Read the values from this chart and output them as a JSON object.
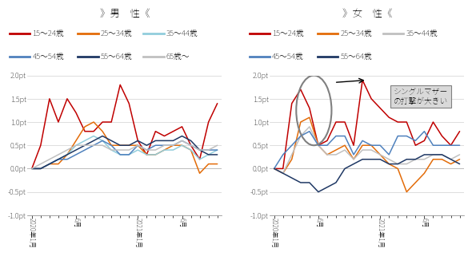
{
  "title_male": "》男　性《",
  "title_female": "》女　性《",
  "annotation_text": "シングルマザー\nの打撃が大きい",
  "ylim": [
    -1.0,
    2.0
  ],
  "yticks": [
    -1.0,
    -0.5,
    0.0,
    0.5,
    1.0,
    1.5,
    2.0
  ],
  "ytick_labels": [
    "-1.0pt",
    "-0.5pt",
    "0.0pt",
    "0.5pt",
    "1.0pt",
    "1.5pt",
    "2.0pt"
  ],
  "n_points": 22,
  "legend_male": [
    {
      "label": "15～24歳",
      "color": "#c00000"
    },
    {
      "label": "25～34歳",
      "color": "#e36c09"
    },
    {
      "label": "35～44歳",
      "color": "#92cddc"
    },
    {
      "label": "45～54歳",
      "color": "#4f81bd"
    },
    {
      "label": "55～64歳",
      "color": "#1f3864"
    },
    {
      "label": "65歳～",
      "color": "#c0c0c0"
    }
  ],
  "legend_female": [
    {
      "label": "15～24歳",
      "color": "#c00000"
    },
    {
      "label": "25～34歳",
      "color": "#e36c09"
    },
    {
      "label": "35～44歳",
      "color": "#c0c0c0"
    },
    {
      "label": "45～54歳",
      "color": "#4f81bd"
    },
    {
      "label": "55～64歳",
      "color": "#1f3864"
    }
  ],
  "male_data": {
    "age15_24": [
      0.0,
      0.5,
      1.5,
      1.0,
      1.5,
      1.2,
      0.8,
      0.8,
      1.0,
      1.0,
      1.8,
      1.4,
      0.6,
      0.3,
      0.8,
      0.7,
      0.8,
      0.9,
      0.5,
      0.2,
      1.0,
      1.4
    ],
    "age25_34": [
      0.0,
      0.0,
      0.1,
      0.1,
      0.3,
      0.6,
      0.9,
      1.0,
      0.8,
      0.5,
      0.5,
      0.5,
      0.5,
      0.3,
      0.3,
      0.4,
      0.5,
      0.5,
      0.4,
      -0.1,
      0.1,
      0.1
    ],
    "age35_44": [
      0.0,
      0.0,
      0.1,
      0.2,
      0.3,
      0.5,
      0.6,
      0.7,
      0.6,
      0.4,
      0.3,
      0.3,
      0.4,
      0.3,
      0.3,
      0.4,
      0.4,
      0.5,
      0.4,
      0.2,
      0.3,
      0.4
    ],
    "age45_54": [
      0.0,
      0.0,
      0.1,
      0.2,
      0.2,
      0.3,
      0.4,
      0.5,
      0.6,
      0.5,
      0.3,
      0.3,
      0.5,
      0.4,
      0.5,
      0.5,
      0.5,
      0.6,
      0.5,
      0.4,
      0.4,
      0.4
    ],
    "age55_64": [
      0.0,
      0.0,
      0.1,
      0.2,
      0.3,
      0.4,
      0.5,
      0.6,
      0.7,
      0.6,
      0.5,
      0.5,
      0.6,
      0.5,
      0.6,
      0.6,
      0.6,
      0.7,
      0.6,
      0.4,
      0.3,
      0.3
    ],
    "age65p": [
      0.0,
      0.1,
      0.2,
      0.3,
      0.4,
      0.5,
      0.5,
      0.5,
      0.5,
      0.4,
      0.4,
      0.4,
      0.5,
      0.4,
      0.4,
      0.5,
      0.5,
      0.6,
      0.5,
      0.4,
      0.4,
      0.5
    ]
  },
  "female_data": {
    "age15_24": [
      0.0,
      0.0,
      1.4,
      1.7,
      1.3,
      0.5,
      0.6,
      1.0,
      1.0,
      0.5,
      1.9,
      1.5,
      1.3,
      1.1,
      1.0,
      1.0,
      0.5,
      0.6,
      1.0,
      0.7,
      0.5,
      0.8
    ],
    "age25_34": [
      0.0,
      -0.1,
      0.2,
      1.0,
      1.1,
      0.5,
      0.3,
      0.4,
      0.5,
      0.2,
      0.5,
      0.5,
      0.3,
      0.1,
      0.0,
      -0.5,
      -0.3,
      -0.1,
      0.2,
      0.2,
      0.1,
      0.2
    ],
    "age35_44": [
      0.0,
      -0.1,
      0.3,
      0.7,
      0.9,
      0.5,
      0.3,
      0.3,
      0.4,
      0.2,
      0.4,
      0.4,
      0.3,
      0.2,
      0.1,
      0.1,
      0.2,
      0.2,
      0.3,
      0.3,
      0.2,
      0.3
    ],
    "age45_54": [
      0.0,
      0.3,
      0.5,
      0.7,
      0.8,
      0.5,
      0.5,
      0.7,
      0.7,
      0.3,
      0.6,
      0.5,
      0.5,
      0.3,
      0.7,
      0.7,
      0.6,
      0.8,
      0.5,
      0.5,
      0.5,
      0.5
    ],
    "age55_64": [
      0.0,
      -0.1,
      -0.2,
      -0.3,
      -0.3,
      -0.5,
      -0.4,
      -0.3,
      0.0,
      0.1,
      0.2,
      0.2,
      0.2,
      0.1,
      0.1,
      0.2,
      0.2,
      0.3,
      0.3,
      0.3,
      0.2,
      0.1
    ]
  },
  "x_tick_positions": [
    0,
    5,
    12,
    17
  ],
  "x_tick_labels": [
    "2020年1月",
    "6月",
    "2021年1月",
    "6月"
  ],
  "title_x_labels_rotated": [
    true,
    false,
    true,
    false
  ]
}
